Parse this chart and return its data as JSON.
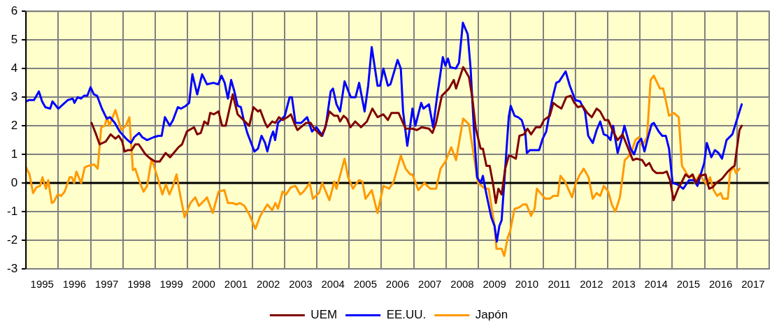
{
  "chart_data": {
    "type": "line",
    "xlim": [
      1995,
      2018
    ],
    "xticks": [
      {
        "value": 1995,
        "label": null
      },
      {
        "value": 1995.5,
        "label": "1995"
      },
      {
        "value": 1996,
        "label": null
      },
      {
        "value": 1996.5,
        "label": "1996"
      },
      {
        "value": 1997,
        "label": null
      },
      {
        "value": 1997.5,
        "label": "1997"
      },
      {
        "value": 1998,
        "label": null
      },
      {
        "value": 1998.5,
        "label": "1998"
      },
      {
        "value": 1999,
        "label": null
      },
      {
        "value": 1999.5,
        "label": "1999"
      },
      {
        "value": 2000,
        "label": null
      },
      {
        "value": 2000.5,
        "label": "2000"
      },
      {
        "value": 2001,
        "label": null
      },
      {
        "value": 2001.5,
        "label": "2001"
      },
      {
        "value": 2002,
        "label": null
      },
      {
        "value": 2002.5,
        "label": "2002"
      },
      {
        "value": 2003,
        "label": null
      },
      {
        "value": 2003.5,
        "label": "2003"
      },
      {
        "value": 2004,
        "label": null
      },
      {
        "value": 2004.5,
        "label": "2004"
      },
      {
        "value": 2005,
        "label": null
      },
      {
        "value": 2005.5,
        "label": "2005"
      },
      {
        "value": 2006,
        "label": null
      },
      {
        "value": 2006.5,
        "label": "2006"
      },
      {
        "value": 2007,
        "label": null
      },
      {
        "value": 2007.5,
        "label": "2007"
      },
      {
        "value": 2008,
        "label": null
      },
      {
        "value": 2008.5,
        "label": "2008"
      },
      {
        "value": 2009,
        "label": null
      },
      {
        "value": 2009.5,
        "label": "2009"
      },
      {
        "value": 2010,
        "label": null
      },
      {
        "value": 2010.5,
        "label": "2010"
      },
      {
        "value": 2011,
        "label": null
      },
      {
        "value": 2011.5,
        "label": "2011"
      },
      {
        "value": 2012,
        "label": null
      },
      {
        "value": 2012.5,
        "label": "2012"
      },
      {
        "value": 2013,
        "label": null
      },
      {
        "value": 2013.5,
        "label": "2013"
      },
      {
        "value": 2014,
        "label": null
      },
      {
        "value": 2014.5,
        "label": "2014"
      },
      {
        "value": 2015,
        "label": null
      },
      {
        "value": 2015.5,
        "label": "2015"
      },
      {
        "value": 2016,
        "label": null
      },
      {
        "value": 2016.5,
        "label": "2016"
      },
      {
        "value": 2017,
        "label": null
      },
      {
        "value": 2017.5,
        "label": "2017"
      },
      {
        "value": 2018,
        "label": null
      }
    ],
    "ylim": [
      -3,
      6
    ],
    "yticks": [
      -3,
      -2,
      -1,
      0,
      1,
      2,
      3,
      4,
      5,
      6
    ],
    "grid": true,
    "legend": "bottom",
    "marker": "none",
    "line_style": "solid",
    "ref_lines": [
      {
        "axis": "y",
        "value": 0,
        "color": "#000000"
      }
    ],
    "series": [
      {
        "name": "UEM",
        "color": "#800000",
        "x": [
          1997.03,
          1997.17,
          1997.28,
          1997.47,
          1997.62,
          1997.77,
          1997.87,
          1997.98,
          1998.05,
          1998.16,
          1998.27,
          1998.38,
          1998.49,
          1998.7,
          1998.85,
          1999.0,
          1999.14,
          1999.32,
          1999.46,
          1999.61,
          1999.72,
          1999.83,
          1999.98,
          2000.2,
          2000.3,
          2000.41,
          2000.52,
          2000.63,
          2000.7,
          2000.81,
          2000.96,
          2001.07,
          2001.18,
          2001.4,
          2001.55,
          2001.73,
          2001.91,
          2002.04,
          2002.18,
          2002.25,
          2002.4,
          2002.47,
          2002.62,
          2002.72,
          2002.83,
          2002.94,
          2003.09,
          2003.2,
          2003.3,
          2003.4,
          2003.56,
          2003.67,
          2003.81,
          2003.92,
          2004.14,
          2004.25,
          2004.39,
          2004.54,
          2004.65,
          2004.72,
          2004.83,
          2004.93,
          2005.04,
          2005.19,
          2005.37,
          2005.55,
          2005.72,
          2005.88,
          2006.06,
          2006.2,
          2006.31,
          2006.53,
          2006.67,
          2006.75,
          2006.96,
          2007.1,
          2007.25,
          2007.47,
          2007.58,
          2007.69,
          2007.87,
          2008.09,
          2008.24,
          2008.31,
          2008.53,
          2008.71,
          2008.81,
          2008.92,
          2009.07,
          2009.14,
          2009.25,
          2009.35,
          2009.45,
          2009.54,
          2009.62,
          2009.72,
          2009.83,
          2009.94,
          2010.0,
          2010.16,
          2010.27,
          2010.41,
          2010.52,
          2010.63,
          2010.78,
          2010.92,
          2011.03,
          2011.21,
          2011.32,
          2011.43,
          2011.57,
          2011.72,
          2011.86,
          2011.97,
          2012.08,
          2012.22,
          2012.37,
          2012.51,
          2012.66,
          2012.77,
          2012.91,
          2013.02,
          2013.17,
          2013.31,
          2013.46,
          2013.64,
          2013.78,
          2013.89,
          2014.07,
          2014.18,
          2014.29,
          2014.4,
          2014.51,
          2014.72,
          2014.83,
          2014.93,
          2015.04,
          2015.18,
          2015.3,
          2015.41,
          2015.52,
          2015.63,
          2015.74,
          2015.85,
          2016.03,
          2016.14,
          2016.25,
          2016.36,
          2016.54,
          2016.72,
          2016.86,
          2016.93,
          2017.0,
          2017.08,
          2017.15
        ],
        "values": [
          2.1,
          1.7,
          1.35,
          1.45,
          1.7,
          1.55,
          1.65,
          1.45,
          1.1,
          1.15,
          1.15,
          1.35,
          1.35,
          1.0,
          0.85,
          0.75,
          0.75,
          1.05,
          0.9,
          1.1,
          1.25,
          1.35,
          1.8,
          1.95,
          1.7,
          1.75,
          2.15,
          2.05,
          2.45,
          2.4,
          2.5,
          2.0,
          2.0,
          3.1,
          2.4,
          2.2,
          2.0,
          2.65,
          2.5,
          2.55,
          2.1,
          1.95,
          2.15,
          2.1,
          2.3,
          2.2,
          2.3,
          2.4,
          2.1,
          1.85,
          2.0,
          2.1,
          2.1,
          1.9,
          1.65,
          1.9,
          2.5,
          2.35,
          2.35,
          2.15,
          2.35,
          2.25,
          1.95,
          2.15,
          1.95,
          2.15,
          2.6,
          2.3,
          2.4,
          2.2,
          2.45,
          2.45,
          2.1,
          1.9,
          1.9,
          1.85,
          1.95,
          1.9,
          1.75,
          2.1,
          3.05,
          3.3,
          3.6,
          3.3,
          4.05,
          3.7,
          3.0,
          1.9,
          1.2,
          1.2,
          0.6,
          0.6,
          0.0,
          -0.7,
          -0.2,
          -0.4,
          0.5,
          0.95,
          0.95,
          0.85,
          1.65,
          1.7,
          1.9,
          1.7,
          1.95,
          1.95,
          2.2,
          2.35,
          2.8,
          2.7,
          2.6,
          3.0,
          3.05,
          2.8,
          2.65,
          2.7,
          2.45,
          2.3,
          2.6,
          2.5,
          2.2,
          2.2,
          1.8,
          1.5,
          1.7,
          1.2,
          0.8,
          0.85,
          0.8,
          0.6,
          0.7,
          0.45,
          0.35,
          0.35,
          0.4,
          0.1,
          -0.6,
          -0.2,
          0.05,
          0.3,
          0.2,
          0.3,
          0.0,
          0.25,
          0.3,
          -0.2,
          -0.15,
          0.0,
          0.15,
          0.4,
          0.55,
          0.6,
          1.2,
          1.85,
          2.0
        ]
      },
      {
        "name": "EE.UU.",
        "color": "#0000ff",
        "x": [
          1995.0,
          1995.1,
          1995.25,
          1995.4,
          1995.5,
          1995.6,
          1995.75,
          1995.82,
          1996.0,
          1996.15,
          1996.3,
          1996.45,
          1996.5,
          1996.6,
          1996.7,
          1996.8,
          1996.9,
          1997.0,
          1997.1,
          1997.2,
          1997.35,
          1997.5,
          1997.6,
          1997.75,
          1997.9,
          1998.1,
          1998.25,
          1998.35,
          1998.5,
          1998.6,
          1998.75,
          1998.95,
          1999.1,
          1999.2,
          1999.3,
          1999.45,
          1999.55,
          1999.7,
          1999.8,
          1999.95,
          2000.05,
          2000.15,
          2000.3,
          2000.45,
          2000.6,
          2000.8,
          2000.95,
          2001.05,
          2001.15,
          2001.25,
          2001.35,
          2001.45,
          2001.55,
          2001.65,
          2001.75,
          2001.85,
          2002.07,
          2002.18,
          2002.29,
          2002.4,
          2002.47,
          2002.58,
          2002.65,
          2002.71,
          2002.8,
          2003.01,
          2003.16,
          2003.23,
          2003.34,
          2003.52,
          2003.7,
          2003.85,
          2003.99,
          2004.17,
          2004.28,
          2004.43,
          2004.5,
          2004.61,
          2004.72,
          2004.86,
          2005.05,
          2005.2,
          2005.31,
          2005.48,
          2005.59,
          2005.7,
          2005.88,
          2005.96,
          2006.06,
          2006.2,
          2006.28,
          2006.5,
          2006.6,
          2006.67,
          2006.8,
          2006.89,
          2006.96,
          2007.05,
          2007.23,
          2007.3,
          2007.47,
          2007.6,
          2007.72,
          2007.9,
          2007.98,
          2008.06,
          2008.13,
          2008.3,
          2008.4,
          2008.52,
          2008.67,
          2008.76,
          2008.88,
          2008.96,
          2009.07,
          2009.14,
          2009.25,
          2009.4,
          2009.5,
          2009.57,
          2009.65,
          2009.72,
          2009.83,
          2009.94,
          2010.0,
          2010.12,
          2010.23,
          2010.34,
          2010.45,
          2010.5,
          2010.6,
          2010.88,
          2010.99,
          2011.1,
          2011.28,
          2011.41,
          2011.5,
          2011.7,
          2011.83,
          2011.93,
          2012.0,
          2012.15,
          2012.3,
          2012.4,
          2012.54,
          2012.66,
          2012.77,
          2012.88,
          2012.99,
          2013.09,
          2013.17,
          2013.31,
          2013.42,
          2013.52,
          2013.71,
          2013.82,
          2013.93,
          2014.04,
          2014.14,
          2014.25,
          2014.36,
          2014.43,
          2014.58,
          2014.69,
          2014.8,
          2014.9,
          2015.01,
          2015.16,
          2015.34,
          2015.52,
          2015.67,
          2015.78,
          2015.88,
          2015.99,
          2016.07,
          2016.21,
          2016.32,
          2016.43,
          2016.54,
          2016.68,
          2016.86,
          2016.97,
          2017.15
        ],
        "values": [
          2.85,
          2.9,
          2.9,
          3.2,
          2.85,
          2.65,
          2.6,
          2.85,
          2.6,
          2.75,
          2.9,
          2.95,
          2.8,
          3.0,
          2.95,
          3.05,
          3.05,
          3.35,
          3.1,
          3.05,
          2.6,
          2.25,
          2.3,
          2.1,
          1.8,
          1.55,
          1.4,
          1.6,
          1.75,
          1.6,
          1.5,
          1.6,
          1.65,
          1.65,
          2.3,
          2.0,
          2.2,
          2.65,
          2.6,
          2.7,
          2.8,
          3.8,
          3.1,
          3.8,
          3.45,
          3.5,
          3.45,
          3.75,
          3.5,
          2.95,
          3.6,
          3.2,
          2.7,
          2.65,
          2.15,
          1.75,
          1.1,
          1.2,
          1.65,
          1.4,
          1.1,
          1.6,
          1.8,
          1.5,
          2.1,
          2.35,
          3.0,
          3.0,
          2.1,
          2.1,
          2.3,
          1.8,
          1.95,
          1.65,
          2.0,
          3.2,
          3.3,
          2.75,
          2.5,
          3.55,
          3.0,
          3.0,
          3.5,
          2.5,
          3.4,
          4.75,
          3.4,
          3.4,
          4.0,
          3.4,
          3.45,
          4.3,
          4.0,
          2.5,
          1.3,
          2.0,
          2.6,
          2.0,
          2.8,
          2.6,
          2.75,
          1.95,
          3.0,
          4.4,
          4.1,
          4.35,
          4.05,
          4.0,
          4.2,
          5.6,
          5.2,
          4.0,
          1.5,
          0.2,
          0.0,
          0.25,
          -0.4,
          -1.2,
          -1.5,
          -2.05,
          -1.5,
          -1.3,
          0.5,
          2.3,
          2.7,
          2.35,
          2.3,
          2.2,
          1.8,
          1.05,
          1.15,
          1.15,
          1.55,
          1.8,
          2.9,
          3.5,
          3.55,
          3.9,
          3.4,
          3.1,
          2.9,
          2.85,
          2.5,
          1.65,
          1.4,
          1.85,
          2.15,
          1.7,
          1.65,
          1.5,
          2.0,
          1.05,
          1.5,
          2.0,
          1.2,
          1.0,
          1.4,
          1.55,
          1.1,
          1.6,
          2.05,
          2.1,
          1.8,
          1.65,
          1.65,
          1.2,
          0.0,
          -0.05,
          -0.2,
          0.1,
          0.1,
          -0.1,
          0.3,
          0.7,
          1.4,
          0.9,
          1.15,
          1.05,
          0.85,
          1.5,
          1.7,
          2.1,
          2.75
        ]
      },
      {
        "name": "Japón",
        "color": "#ff9900",
        "x": [
          1995.0,
          1995.11,
          1995.22,
          1995.33,
          1995.44,
          1995.51,
          1995.62,
          1995.69,
          1995.8,
          1995.87,
          1995.98,
          1996.09,
          1996.2,
          1996.35,
          1996.42,
          1996.49,
          1996.56,
          1996.71,
          1996.82,
          1996.93,
          1997.11,
          1997.22,
          1997.33,
          1997.44,
          1997.51,
          1997.58,
          1997.77,
          1997.95,
          1998.09,
          1998.2,
          1998.31,
          1998.38,
          1998.53,
          1998.64,
          1998.75,
          1998.89,
          1999.07,
          1999.22,
          1999.33,
          1999.44,
          1999.55,
          1999.66,
          1999.77,
          1999.91,
          2000.09,
          2000.24,
          2000.35,
          2000.53,
          2000.6,
          2000.78,
          2000.96,
          2001.14,
          2001.25,
          2001.4,
          2001.51,
          2001.62,
          2001.76,
          2001.91,
          2002.1,
          2002.25,
          2002.47,
          2002.62,
          2002.72,
          2002.8,
          2002.94,
          2003.05,
          2003.2,
          2003.34,
          2003.49,
          2003.59,
          2003.78,
          2003.88,
          2004.07,
          2004.17,
          2004.39,
          2004.54,
          2004.61,
          2004.86,
          2004.97,
          2005.12,
          2005.3,
          2005.41,
          2005.51,
          2005.7,
          2005.88,
          2006.06,
          2006.24,
          2006.38,
          2006.49,
          2006.6,
          2006.75,
          2006.89,
          2006.96,
          2007.14,
          2007.33,
          2007.51,
          2007.69,
          2007.83,
          2007.98,
          2008.16,
          2008.31,
          2008.53,
          2008.71,
          2008.88,
          2008.99,
          2009.21,
          2009.32,
          2009.5,
          2009.56,
          2009.72,
          2009.8,
          2009.91,
          2009.98,
          2010.12,
          2010.27,
          2010.38,
          2010.49,
          2010.63,
          2010.74,
          2010.81,
          2010.92,
          2011.07,
          2011.21,
          2011.32,
          2011.46,
          2011.54,
          2011.68,
          2011.9,
          2012.0,
          2012.12,
          2012.26,
          2012.41,
          2012.54,
          2012.66,
          2012.77,
          2012.88,
          2013.02,
          2013.13,
          2013.24,
          2013.38,
          2013.53,
          2013.71,
          2013.86,
          2013.96,
          2014.07,
          2014.22,
          2014.33,
          2014.43,
          2014.62,
          2014.72,
          2014.9,
          2015.05,
          2015.2,
          2015.3,
          2015.41,
          2015.52,
          2015.63,
          2015.7,
          2015.85,
          2015.96,
          2016.07,
          2016.17,
          2016.28,
          2016.39,
          2016.5,
          2016.57,
          2016.72,
          2016.79,
          2016.9,
          2016.97,
          2017.08
        ],
        "values": [
          0.55,
          0.3,
          -0.35,
          -0.15,
          -0.1,
          0.2,
          -0.2,
          0.1,
          -0.7,
          -0.65,
          -0.4,
          -0.45,
          -0.3,
          0.2,
          0.2,
          0.0,
          0.4,
          0.0,
          0.55,
          0.6,
          0.65,
          0.5,
          1.95,
          2.0,
          2.3,
          2.0,
          2.55,
          1.85,
          2.0,
          2.3,
          0.45,
          0.5,
          0.0,
          -0.3,
          -0.1,
          0.85,
          0.2,
          -0.4,
          -0.05,
          -0.4,
          -0.1,
          0.3,
          -0.4,
          -1.2,
          -0.7,
          -0.5,
          -0.8,
          -0.6,
          -0.5,
          -1.05,
          -0.3,
          -0.25,
          -0.7,
          -0.7,
          -0.75,
          -0.7,
          -0.8,
          -1.1,
          -1.6,
          -1.15,
          -0.75,
          -0.95,
          -0.7,
          -0.9,
          -0.3,
          -0.4,
          -0.15,
          -0.1,
          -0.4,
          -0.3,
          0.0,
          -0.55,
          -0.35,
          0.0,
          -0.6,
          0.05,
          -0.2,
          0.85,
          0.2,
          -0.2,
          0.1,
          0.05,
          -0.55,
          -0.25,
          -1.05,
          -0.1,
          -0.2,
          0.05,
          0.5,
          0.95,
          0.5,
          0.3,
          0.3,
          -0.25,
          0.0,
          -0.2,
          -0.2,
          0.5,
          0.75,
          1.25,
          0.8,
          2.25,
          2.05,
          0.8,
          0.0,
          -0.2,
          -0.2,
          -1.5,
          -2.3,
          -2.3,
          -2.55,
          -1.9,
          -1.7,
          -0.9,
          -0.85,
          -0.75,
          -0.75,
          -1.15,
          -0.9,
          -0.2,
          -0.35,
          -0.55,
          -0.55,
          -0.45,
          -0.45,
          0.25,
          0.05,
          -0.5,
          -0.05,
          0.25,
          0.5,
          0.2,
          -0.55,
          -0.35,
          -0.45,
          -0.1,
          -0.3,
          -0.75,
          -1.0,
          -0.5,
          0.8,
          1.0,
          1.5,
          1.6,
          1.3,
          1.6,
          3.6,
          3.75,
          3.3,
          3.3,
          2.35,
          2.45,
          2.3,
          0.6,
          0.4,
          0.2,
          0.25,
          0.0,
          0.3,
          0.1,
          -0.05,
          0.2,
          -0.25,
          -0.45,
          -0.35,
          -0.55,
          -0.55,
          0.4,
          0.55,
          0.35,
          0.5
        ]
      }
    ]
  }
}
